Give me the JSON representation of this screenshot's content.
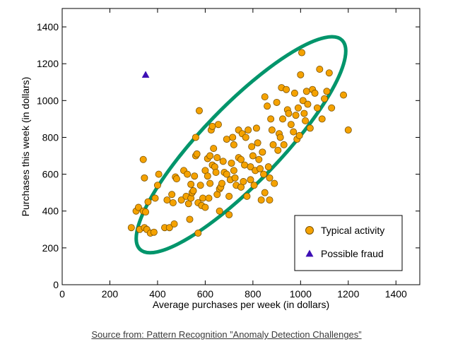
{
  "source_caption": "Source from: Pattern Recognition ”Anomaly Detection Challenges”",
  "colors": {
    "typical_point": "#F5A200",
    "typical_edge": "#7a5200",
    "fraud_point": "#3d0fb5",
    "ellipse": "#00956b",
    "axes": "#000000",
    "background": "#ffffff"
  },
  "chart_data": {
    "type": "scatter",
    "title": "",
    "xlabel": "Average purchases per week (in dollars)",
    "ylabel": "Purchases this week (in dollars)",
    "xlim": [
      0,
      1500
    ],
    "ylim": [
      0,
      1500
    ],
    "xticks": [
      0,
      200,
      400,
      600,
      800,
      1000,
      1200,
      1400
    ],
    "yticks": [
      0,
      200,
      400,
      600,
      800,
      1000,
      1200,
      1400
    ],
    "xtick_labels": [
      "0",
      "200",
      "400",
      "600",
      "800",
      "1000",
      "1200",
      "1400"
    ],
    "ytick_labels": [
      "0",
      "200",
      "400",
      "600",
      "800",
      "1000",
      "1200",
      "1400"
    ],
    "grid": false,
    "legend_position": "bottom-right",
    "series": [
      {
        "name": "Typical activity",
        "marker": "circle",
        "color": "#F5A200",
        "points": [
          [
            290,
            310
          ],
          [
            310,
            400
          ],
          [
            320,
            420
          ],
          [
            325,
            300
          ],
          [
            340,
            400
          ],
          [
            340,
            680
          ],
          [
            345,
            580
          ],
          [
            345,
            310
          ],
          [
            350,
            395
          ],
          [
            355,
            300
          ],
          [
            360,
            450
          ],
          [
            370,
            280
          ],
          [
            385,
            285
          ],
          [
            390,
            470
          ],
          [
            400,
            540
          ],
          [
            405,
            600
          ],
          [
            430,
            310
          ],
          [
            440,
            460
          ],
          [
            450,
            310
          ],
          [
            460,
            490
          ],
          [
            465,
            445
          ],
          [
            470,
            330
          ],
          [
            475,
            585
          ],
          [
            480,
            575
          ],
          [
            500,
            460
          ],
          [
            510,
            620
          ],
          [
            520,
            480
          ],
          [
            525,
            600
          ],
          [
            530,
            440
          ],
          [
            535,
            355
          ],
          [
            540,
            545
          ],
          [
            540,
            470
          ],
          [
            545,
            500
          ],
          [
            550,
            510
          ],
          [
            555,
            590
          ],
          [
            560,
            800
          ],
          [
            560,
            700
          ],
          [
            565,
            710
          ],
          [
            570,
            280
          ],
          [
            570,
            445
          ],
          [
            575,
            945
          ],
          [
            580,
            540
          ],
          [
            585,
            430
          ],
          [
            590,
            470
          ],
          [
            600,
            420
          ],
          [
            600,
            620
          ],
          [
            610,
            685
          ],
          [
            610,
            590
          ],
          [
            615,
            470
          ],
          [
            620,
            550
          ],
          [
            620,
            700
          ],
          [
            625,
            840
          ],
          [
            630,
            860
          ],
          [
            630,
            650
          ],
          [
            635,
            740
          ],
          [
            640,
            640
          ],
          [
            645,
            610
          ],
          [
            650,
            490
          ],
          [
            650,
            690
          ],
          [
            655,
            870
          ],
          [
            660,
            520
          ],
          [
            660,
            400
          ],
          [
            665,
            530
          ],
          [
            670,
            550
          ],
          [
            675,
            670
          ],
          [
            680,
            610
          ],
          [
            690,
            790
          ],
          [
            690,
            600
          ],
          [
            700,
            480
          ],
          [
            700,
            380
          ],
          [
            705,
            570
          ],
          [
            710,
            660
          ],
          [
            715,
            800
          ],
          [
            720,
            620
          ],
          [
            720,
            760
          ],
          [
            725,
            580
          ],
          [
            730,
            540
          ],
          [
            740,
            840
          ],
          [
            740,
            690
          ],
          [
            750,
            680
          ],
          [
            750,
            530
          ],
          [
            755,
            820
          ],
          [
            760,
            560
          ],
          [
            765,
            650
          ],
          [
            770,
            800
          ],
          [
            775,
            480
          ],
          [
            780,
            840
          ],
          [
            790,
            570
          ],
          [
            790,
            640
          ],
          [
            795,
            750
          ],
          [
            800,
            700
          ],
          [
            805,
            540
          ],
          [
            810,
            620
          ],
          [
            815,
            850
          ],
          [
            820,
            770
          ],
          [
            825,
            680
          ],
          [
            830,
            630
          ],
          [
            835,
            460
          ],
          [
            840,
            720
          ],
          [
            845,
            600
          ],
          [
            850,
            1020
          ],
          [
            850,
            500
          ],
          [
            860,
            970
          ],
          [
            865,
            640
          ],
          [
            870,
            580
          ],
          [
            870,
            460
          ],
          [
            875,
            900
          ],
          [
            880,
            840
          ],
          [
            885,
            760
          ],
          [
            890,
            550
          ],
          [
            900,
            990
          ],
          [
            905,
            730
          ],
          [
            910,
            820
          ],
          [
            915,
            800
          ],
          [
            920,
            1070
          ],
          [
            925,
            900
          ],
          [
            930,
            760
          ],
          [
            940,
            1060
          ],
          [
            945,
            950
          ],
          [
            950,
            930
          ],
          [
            960,
            870
          ],
          [
            970,
            830
          ],
          [
            975,
            1040
          ],
          [
            980,
            920
          ],
          [
            985,
            790
          ],
          [
            990,
            960
          ],
          [
            995,
            810
          ],
          [
            1000,
            1140
          ],
          [
            1005,
            1260
          ],
          [
            1010,
            1000
          ],
          [
            1015,
            930
          ],
          [
            1020,
            890
          ],
          [
            1025,
            1050
          ],
          [
            1030,
            980
          ],
          [
            1040,
            850
          ],
          [
            1050,
            1060
          ],
          [
            1060,
            1040
          ],
          [
            1070,
            960
          ],
          [
            1080,
            1170
          ],
          [
            1090,
            900
          ],
          [
            1100,
            1010
          ],
          [
            1110,
            1050
          ],
          [
            1120,
            1150
          ],
          [
            1130,
            960
          ],
          [
            1180,
            1030
          ],
          [
            1200,
            840
          ]
        ]
      },
      {
        "name": "Possible fraud",
        "marker": "triangle",
        "color": "#3d0fb5",
        "points": [
          [
            350,
            1140
          ]
        ]
      }
    ],
    "annotations": [
      {
        "type": "ellipse",
        "color": "#00956b",
        "center": [
          750,
          760
        ],
        "semi_axes": [
          610,
          210
        ],
        "angle_deg": 46
      }
    ]
  }
}
